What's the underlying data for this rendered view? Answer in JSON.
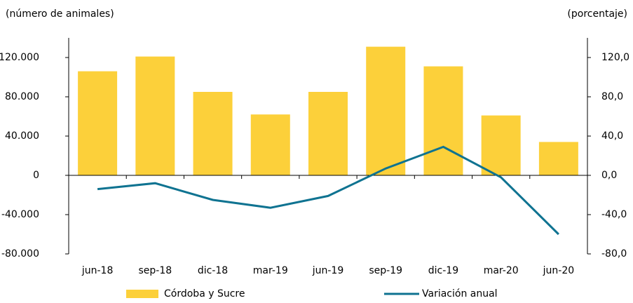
{
  "chart_data": {
    "type": "bar_line",
    "y_label": "(número de animales)",
    "y2_label": "(porcentaje)",
    "categories": [
      "jun-18",
      "sep-18",
      "dic-18",
      "mar-19",
      "jun-19",
      "sep-19",
      "dic-19",
      "mar-20",
      "jun-20"
    ],
    "series": [
      {
        "name": "Córdoba y Sucre",
        "color": "#fcd03a",
        "type": "bar",
        "values": [
          106000,
          121000,
          85000,
          62000,
          85000,
          131000,
          111000,
          61000,
          34000
        ]
      },
      {
        "name": "Variación anual",
        "color": "#0f7391",
        "type": "line",
        "axis": "y2",
        "values": [
          -14,
          -8,
          -25,
          -33,
          -21,
          7,
          29,
          -2,
          -60
        ]
      }
    ],
    "ylim": [
      -80000,
      140000
    ],
    "yticks": [
      {
        "value": -80000,
        "label": "-80.000"
      },
      {
        "value": -40000,
        "label": "-40.000"
      },
      0,
      {
        "value": 40000,
        "label": "40.000"
      },
      {
        "value": 80000,
        "label": "80.000"
      },
      {
        "value": 120000,
        "label": "120.000"
      }
    ],
    "y2lim": [
      -80,
      140
    ],
    "y2ticks": [
      {
        "value": -80,
        "label": "-80,0"
      },
      {
        "value": -40,
        "label": "-40,0"
      },
      {
        "value": 0,
        "label": "0,0"
      },
      {
        "value": 40,
        "label": "40,0"
      },
      {
        "value": 80,
        "label": "80,0"
      },
      {
        "value": 120,
        "label": "120,0"
      }
    ]
  }
}
